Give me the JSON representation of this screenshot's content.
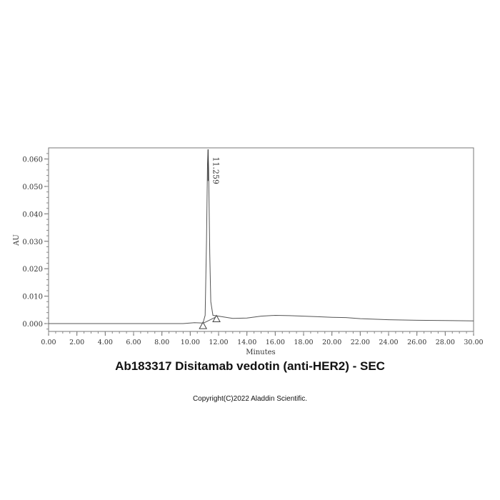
{
  "title": "Ab183317 Disitamab vedotin (anti-HER2) - SEC",
  "copyright": "Copyright(C)2022 Aladdin Scientific.",
  "chart_data": {
    "type": "line",
    "xlabel": "Minutes",
    "ylabel": "AU",
    "xlim": [
      0,
      30
    ],
    "ylim": [
      -0.003,
      0.0665
    ],
    "x_ticks": [
      "0.00",
      "2.00",
      "4.00",
      "6.00",
      "8.00",
      "10.00",
      "12.00",
      "14.00",
      "16.00",
      "18.00",
      "20.00",
      "22.00",
      "24.00",
      "26.00",
      "28.00",
      "30.00"
    ],
    "y_ticks": [
      "0.000",
      "0.010",
      "0.020",
      "0.030",
      "0.040",
      "0.050",
      "0.060"
    ],
    "grid": false,
    "line_color": "#555555",
    "peak_label": "11.259",
    "peak": {
      "x": 11.259,
      "y": 0.0635
    },
    "series": [
      {
        "x": [
          0,
          6,
          9.5,
          10.3,
          10.9,
          11.05,
          11.15,
          11.22,
          11.259,
          11.3,
          11.38,
          11.45,
          11.6,
          12,
          13,
          14,
          15,
          16,
          17,
          18,
          19,
          20,
          21,
          22,
          24,
          26,
          28,
          30
        ],
        "y": [
          0,
          0,
          0,
          0.0003,
          0.0002,
          0.003,
          0.03,
          0.058,
          0.0635,
          0.056,
          0.025,
          0.008,
          0.003,
          0.0027,
          0.0019,
          0.002,
          0.0027,
          0.003,
          0.0029,
          0.0027,
          0.0025,
          0.0023,
          0.0022,
          0.0018,
          0.0014,
          0.0012,
          0.0011,
          0.001
        ]
      }
    ],
    "baseline": {
      "x": [
        10.95,
        11.85
      ],
      "y": [
        0.0002,
        0.0025
      ]
    },
    "markers": [
      {
        "x": 10.9,
        "y": -0.0008
      },
      {
        "x": 11.85,
        "y": 0.0017
      }
    ]
  }
}
